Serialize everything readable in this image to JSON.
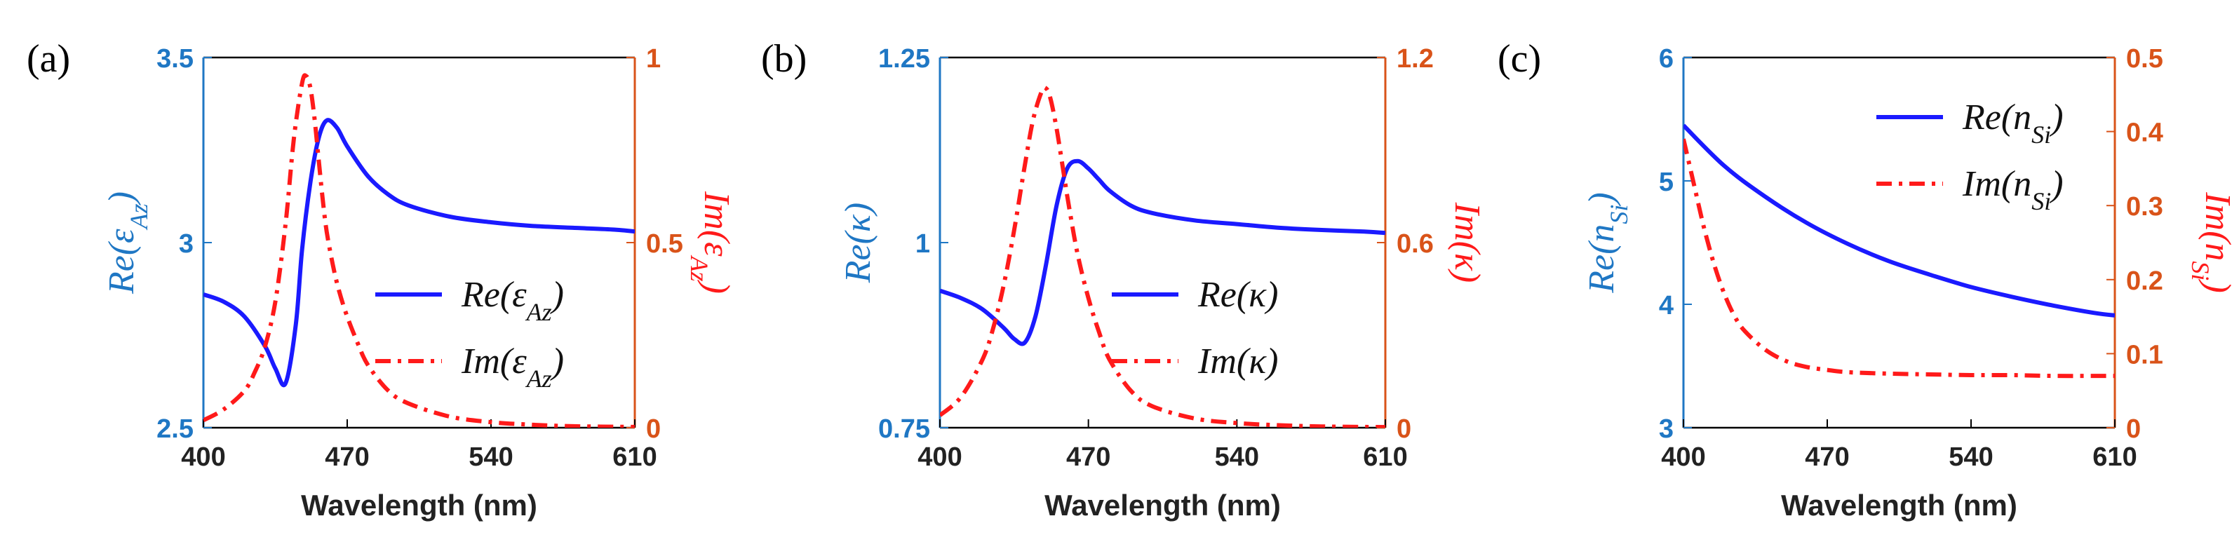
{
  "colors": {
    "left_axis": "#1f77c4",
    "right_axis": "#d95319",
    "re_line": "#1a1aff",
    "im_line": "#ff1a1a",
    "frame": "#000000"
  },
  "chart_data": [
    {
      "id": "a",
      "type": "line",
      "panel_label": "(a)",
      "xlabel": "Wavelength (nm)",
      "ylabel_left": "Re(εAz)",
      "ylabel_right": "Im(εAz)",
      "xlim": [
        400,
        610
      ],
      "ylim_left": [
        2.5,
        3.5
      ],
      "ylim_right": [
        0,
        1
      ],
      "x_ticks": [
        "400",
        "470",
        "540",
        "610"
      ],
      "left_ticks": [
        "2.5",
        "3",
        "3.5"
      ],
      "right_ticks": [
        "0",
        "0.5",
        "1"
      ],
      "legend_position": "lower-right",
      "series": [
        {
          "name": "Re(εAz)",
          "axis": "left",
          "style": "solid",
          "x": [
            400,
            410,
            420,
            430,
            435,
            440,
            445,
            448,
            452,
            456,
            460,
            465,
            470,
            480,
            490,
            500,
            520,
            540,
            560,
            580,
            600,
            610
          ],
          "y": [
            2.86,
            2.84,
            2.8,
            2.72,
            2.66,
            2.62,
            2.78,
            2.98,
            3.16,
            3.28,
            3.33,
            3.31,
            3.26,
            3.18,
            3.13,
            3.1,
            3.07,
            3.055,
            3.045,
            3.04,
            3.035,
            3.03
          ]
        },
        {
          "name": "Im(εAz)",
          "axis": "right",
          "style": "dashdot",
          "x": [
            400,
            410,
            420,
            425,
            430,
            435,
            440,
            444,
            448,
            450,
            452,
            454,
            456,
            458,
            460,
            463,
            466,
            470,
            475,
            480,
            490,
            500,
            520,
            540,
            560,
            580,
            610
          ],
          "y": [
            0.02,
            0.05,
            0.1,
            0.15,
            0.22,
            0.34,
            0.55,
            0.78,
            0.93,
            0.95,
            0.92,
            0.84,
            0.73,
            0.62,
            0.53,
            0.44,
            0.37,
            0.3,
            0.23,
            0.17,
            0.1,
            0.065,
            0.03,
            0.015,
            0.008,
            0.004,
            0.002
          ]
        }
      ]
    },
    {
      "id": "b",
      "type": "line",
      "panel_label": "(b)",
      "xlabel": "Wavelength (nm)",
      "ylabel_left": "Re(κ)",
      "ylabel_right": "Im(κ)",
      "xlim": [
        400,
        610
      ],
      "ylim_left": [
        0.75,
        1.25
      ],
      "ylim_right": [
        0,
        1.2
      ],
      "x_ticks": [
        "400",
        "470",
        "540",
        "610"
      ],
      "left_ticks": [
        "0.75",
        "1",
        "1.25"
      ],
      "right_ticks": [
        "0",
        "0.6",
        "1.2"
      ],
      "legend_position": "lower-right",
      "series": [
        {
          "name": "Re(κ)",
          "axis": "left",
          "style": "solid",
          "x": [
            400,
            410,
            420,
            430,
            435,
            440,
            445,
            450,
            455,
            460,
            465,
            470,
            475,
            480,
            490,
            500,
            520,
            540,
            560,
            580,
            600,
            610
          ],
          "y": [
            0.935,
            0.925,
            0.91,
            0.885,
            0.87,
            0.865,
            0.9,
            0.97,
            1.05,
            1.1,
            1.11,
            1.1,
            1.085,
            1.07,
            1.05,
            1.04,
            1.03,
            1.025,
            1.02,
            1.017,
            1.015,
            1.013
          ]
        },
        {
          "name": "Im(κ)",
          "axis": "right",
          "style": "dashdot",
          "x": [
            400,
            410,
            420,
            425,
            430,
            435,
            440,
            444,
            448,
            450,
            452,
            455,
            458,
            461,
            465,
            470,
            475,
            480,
            490,
            500,
            520,
            540,
            560,
            580,
            610
          ],
          "y": [
            0.04,
            0.1,
            0.22,
            0.32,
            0.46,
            0.64,
            0.85,
            1.0,
            1.09,
            1.1,
            1.07,
            0.97,
            0.84,
            0.71,
            0.56,
            0.42,
            0.31,
            0.22,
            0.12,
            0.07,
            0.03,
            0.015,
            0.008,
            0.004,
            0.002
          ]
        }
      ]
    },
    {
      "id": "c",
      "type": "line",
      "panel_label": "(c)",
      "xlabel": "Wavelength (nm)",
      "ylabel_left": "Re(nSi)",
      "ylabel_right": "Im(nSi)",
      "xlim": [
        400,
        610
      ],
      "ylim_left": [
        3,
        6
      ],
      "ylim_right": [
        0,
        0.5
      ],
      "x_ticks": [
        "400",
        "470",
        "540",
        "610"
      ],
      "left_ticks": [
        "3",
        "4",
        "5",
        "6"
      ],
      "right_ticks": [
        "0",
        "0.1",
        "0.2",
        "0.3",
        "0.4",
        "0.5"
      ],
      "legend_position": "upper-right",
      "series": [
        {
          "name": "Re(nSi)",
          "axis": "left",
          "style": "solid",
          "x": [
            400,
            420,
            440,
            460,
            480,
            500,
            520,
            540,
            560,
            580,
            600,
            610
          ],
          "y": [
            5.45,
            5.12,
            4.87,
            4.66,
            4.49,
            4.35,
            4.24,
            4.14,
            4.06,
            3.99,
            3.93,
            3.91
          ]
        },
        {
          "name": "Im(nSi)",
          "axis": "right",
          "style": "dashdot",
          "x": [
            400,
            405,
            410,
            415,
            420,
            425,
            430,
            440,
            450,
            460,
            470,
            480,
            500,
            520,
            540,
            560,
            580,
            610
          ],
          "y": [
            0.39,
            0.33,
            0.27,
            0.22,
            0.18,
            0.15,
            0.13,
            0.105,
            0.09,
            0.082,
            0.078,
            0.075,
            0.073,
            0.072,
            0.071,
            0.071,
            0.07,
            0.07
          ]
        }
      ]
    }
  ]
}
